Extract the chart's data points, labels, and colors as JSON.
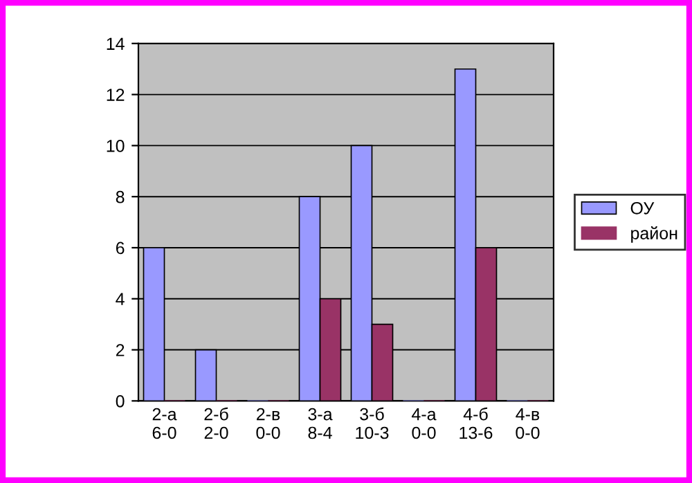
{
  "chart_data": {
    "type": "bar",
    "categories": [
      "2-а\n6-0",
      "2-б\n2-0",
      "2-в\n0-0",
      "3-а\n8-4",
      "3-б\n10-3",
      "4-а\n0-0",
      "4-б\n13-6",
      "4-в\n0-0"
    ],
    "series": [
      {
        "name": "ОУ",
        "color": "#9999ff",
        "values": [
          6,
          2,
          0,
          8,
          10,
          0,
          13,
          0
        ]
      },
      {
        "name": "район",
        "color": "#993366",
        "values": [
          0,
          0,
          0,
          4,
          3,
          0,
          6,
          0
        ]
      }
    ],
    "ylim": [
      0,
      14
    ],
    "yticks": [
      0,
      2,
      4,
      6,
      8,
      10,
      12,
      14
    ],
    "grid": "y",
    "legend": "right"
  }
}
